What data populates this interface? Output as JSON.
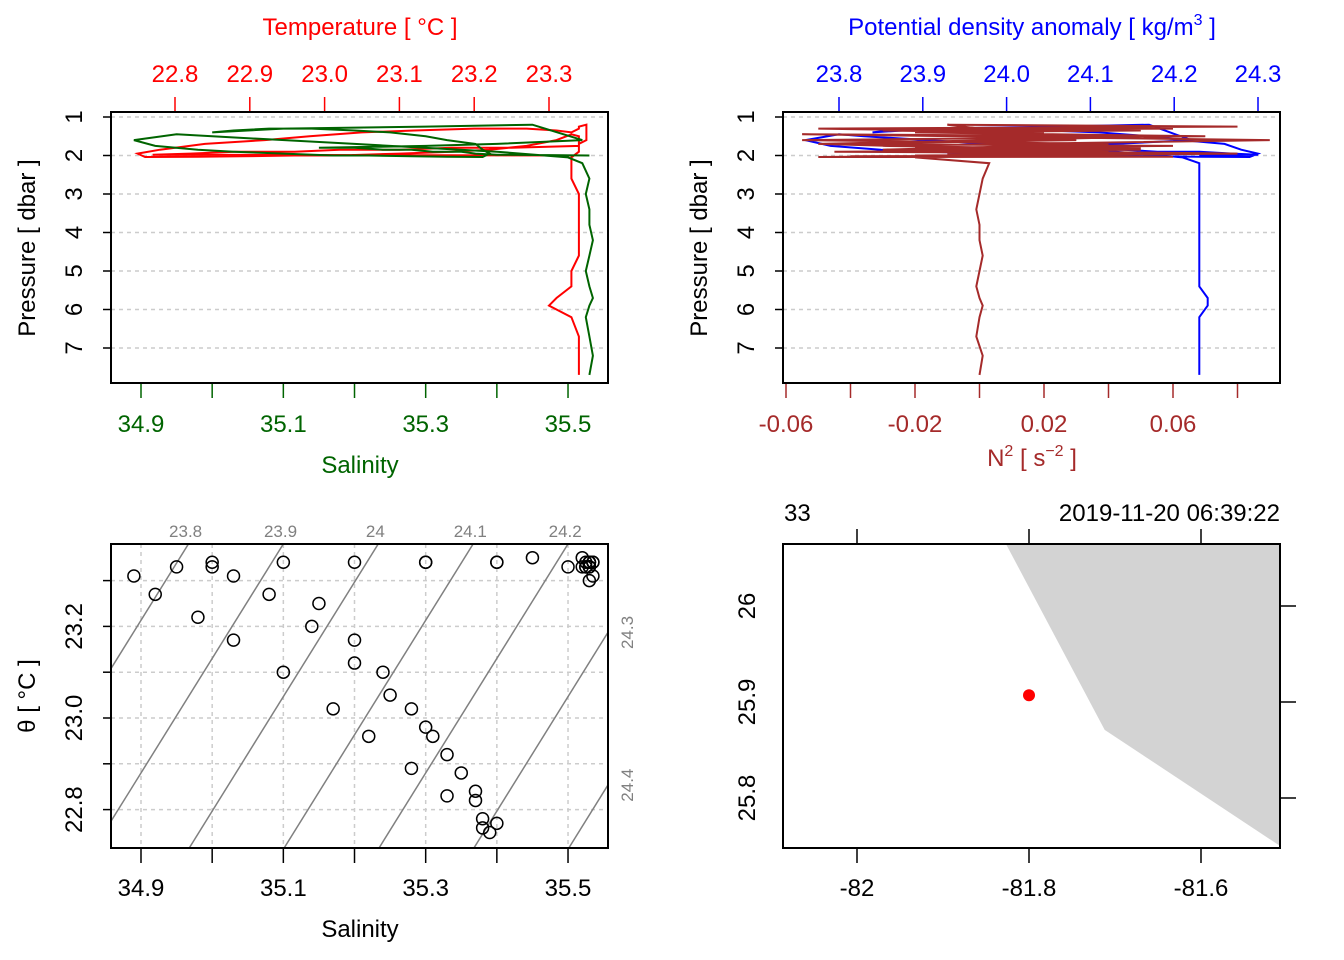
{
  "colors": {
    "temperature": "#ff0000",
    "salinity": "#006400",
    "density": "#0000ff",
    "n2": "#a52a2a",
    "land": "#d3d3d3",
    "station": "#ff0000",
    "isopycnal": "#808080",
    "grid": "#cccccc"
  },
  "panels": {
    "profile_ts": {
      "title": "Temperature [ °C ]",
      "xlabel": "Salinity",
      "ylabel": "Pressure [ dbar ]"
    },
    "profile_density": {
      "title_main": "Potential density anomaly [ kg/m",
      "title_sup": "3",
      "title_end": " ]",
      "xlabel_main": "N",
      "xlabel_sup1": "2",
      "xlabel_mid": " [ s",
      "xlabel_sup2": "−2",
      "xlabel_end": " ]",
      "ylabel": "Pressure [ dbar ]"
    },
    "ts_diagram": {
      "xlabel": "Salinity",
      "ylabel": "θ [ °C ]"
    },
    "map": {
      "station_label": "33",
      "time_label": "2019-11-20 06:39:22"
    }
  },
  "chart_data": [
    {
      "type": "line",
      "panel": "profile_ts",
      "yaxis": {
        "label": "Pressure [ dbar ]",
        "ticks": [
          1,
          2,
          3,
          4,
          5,
          6,
          7
        ],
        "range": [
          7.8,
          0.87
        ],
        "reversed": true
      },
      "xaxis_bottom": {
        "label": "Salinity",
        "ticks": [
          34.9,
          35.0,
          35.1,
          35.2,
          35.3,
          35.4,
          35.5
        ],
        "tick_labels": [
          "34.9",
          "",
          "35.1",
          "",
          "35.3",
          "",
          "35.5"
        ]
      },
      "xaxis_top": {
        "label": "Temperature [ °C ]",
        "ticks": [
          22.8,
          22.9,
          23.0,
          23.1,
          23.2,
          23.3
        ],
        "tick_labels": [
          "22.8",
          "22.9",
          "23.0",
          "23.1",
          "23.2",
          "23.3"
        ]
      },
      "grid": "horizontal-dashed",
      "series": [
        {
          "name": "Salinity",
          "axis": "bottom"
        },
        {
          "name": "Temperature",
          "axis": "top"
        }
      ]
    },
    {
      "type": "line",
      "panel": "profile_density",
      "yaxis": {
        "label": "Pressure [ dbar ]",
        "ticks": [
          1,
          2,
          3,
          4,
          5,
          6,
          7
        ],
        "reversed": true
      },
      "xaxis_top": {
        "ticks": [
          23.8,
          23.9,
          24.0,
          24.1,
          24.2,
          24.3
        ],
        "tick_labels": [
          "23.8",
          "23.9",
          "24.0",
          "24.1",
          "24.2",
          "24.3"
        ]
      },
      "xaxis_bottom": {
        "ticks": [
          -0.06,
          -0.04,
          -0.02,
          0,
          0.02,
          0.04,
          0.06,
          0.08
        ],
        "tick_labels": [
          "-0.06",
          "",
          "-0.02",
          "",
          "0.02",
          "",
          "0.06",
          ""
        ]
      },
      "grid": "horizontal-dashed",
      "series": [
        {
          "name": "Potential density anomaly",
          "axis": "top"
        },
        {
          "name": "N2",
          "axis": "bottom"
        }
      ]
    },
    {
      "type": "scatter",
      "panel": "ts_diagram",
      "xaxis": {
        "label": "Salinity",
        "ticks": [
          34.9,
          35.0,
          35.1,
          35.2,
          35.3,
          35.4,
          35.5
        ],
        "tick_labels": [
          "34.9",
          "",
          "35.1",
          "",
          "35.3",
          "",
          "35.5"
        ]
      },
      "yaxis": {
        "label": "θ [ °C ]",
        "ticks": [
          22.8,
          22.9,
          23.0,
          23.1,
          23.2,
          23.3
        ],
        "tick_labels": [
          "22.8",
          "",
          "23.0",
          "",
          "23.2",
          ""
        ]
      },
      "grid": "dashed",
      "isopycnals": [
        {
          "level": 23.7,
          "label": ""
        },
        {
          "level": 23.8,
          "label": "23.8",
          "label_side": "top"
        },
        {
          "level": 23.9,
          "label": "23.9",
          "label_side": "top"
        },
        {
          "level": 24.0,
          "label": "24",
          "label_side": "top"
        },
        {
          "level": 24.1,
          "label": "24.1",
          "label_side": "top"
        },
        {
          "level": 24.2,
          "label": "24.2",
          "label_side": "top"
        },
        {
          "level": 24.3,
          "label": "24.3",
          "label_side": "right"
        },
        {
          "level": 24.4,
          "label": "24.4",
          "label_side": "right"
        },
        {
          "level": 24.5,
          "label": ""
        }
      ]
    },
    {
      "type": "map",
      "panel": "map",
      "xaxis": {
        "ticks": [
          -82,
          -81.8,
          -81.6
        ],
        "tick_labels": [
          "-82",
          "-81.8",
          "-81.6"
        ]
      },
      "yaxis": {
        "ticks": [
          25.8,
          25.9,
          26
        ],
        "tick_labels": [
          "25.8",
          "25.9",
          "26"
        ]
      },
      "land": [
        [
          -81.83,
          26.07
        ],
        [
          -81.712,
          25.871
        ],
        [
          -81.508,
          25.75
        ],
        [
          -81.508,
          26.07
        ]
      ],
      "station": {
        "lon": -81.8,
        "lat": 25.907
      }
    }
  ],
  "profile": {
    "pressure": [
      7.7,
      7.2,
      6.7,
      6.2,
      5.9,
      5.7,
      5.4,
      5.0,
      4.6,
      4.2,
      3.8,
      3.4,
      3.0,
      2.6,
      2.2,
      2.05,
      1.9,
      1.7,
      1.5,
      1.45,
      1.6,
      1.75,
      1.85,
      1.9,
      1.95,
      2.0,
      2.0,
      2.02,
      2.03,
      2.04,
      1.95,
      1.85,
      1.7,
      1.6,
      1.5,
      1.4,
      1.35,
      1.3,
      1.3,
      1.35,
      1.4,
      1.3,
      1.25,
      1.2,
      1.6,
      1.7,
      1.75,
      1.8,
      1.8,
      1.85,
      1.85,
      1.9,
      1.9,
      1.95,
      1.98,
      2.0
    ],
    "salinity": [
      35.53,
      35.535,
      35.53,
      35.525,
      35.53,
      35.535,
      35.53,
      35.525,
      35.53,
      35.535,
      35.53,
      35.53,
      35.525,
      35.53,
      35.52,
      35.5,
      35.4,
      35.2,
      35.0,
      34.95,
      34.89,
      34.92,
      34.98,
      35.03,
      35.1,
      35.17,
      35.22,
      35.28,
      35.33,
      35.38,
      35.39,
      35.38,
      35.37,
      35.33,
      35.3,
      35.25,
      35.2,
      35.14,
      35.08,
      35.03,
      35.0,
      35.1,
      35.3,
      35.45,
      35.52,
      35.4,
      35.3,
      35.15,
      35.2,
      35.24,
      35.28,
      35.31,
      35.35,
      35.37,
      35.4,
      35.53
    ],
    "temperature": [
      23.34,
      23.34,
      23.34,
      23.33,
      23.3,
      23.31,
      23.33,
      23.33,
      23.34,
      23.34,
      23.34,
      23.34,
      23.34,
      23.33,
      23.33,
      23.33,
      23.34,
      23.34,
      23.34,
      23.33,
      23.31,
      23.27,
      23.22,
      23.17,
      23.1,
      23.02,
      22.96,
      22.89,
      22.83,
      22.76,
      22.75,
      22.78,
      22.84,
      22.92,
      22.98,
      23.05,
      23.12,
      23.2,
      23.27,
      23.31,
      23.33,
      23.34,
      23.34,
      23.35,
      23.35,
      23.34,
      23.34,
      23.25,
      23.17,
      23.1,
      23.02,
      22.96,
      22.88,
      22.82,
      22.77,
      23.33
    ],
    "sigma_theta": [
      24.23,
      24.23,
      24.23,
      24.23,
      24.24,
      24.24,
      24.23,
      24.23,
      24.23,
      24.23,
      24.23,
      24.23,
      24.23,
      24.23,
      24.23,
      24.21,
      24.13,
      23.98,
      23.83,
      23.8,
      23.76,
      23.79,
      23.85,
      23.91,
      23.98,
      24.06,
      24.11,
      24.18,
      24.23,
      24.29,
      24.3,
      24.28,
      24.26,
      24.21,
      24.17,
      24.11,
      24.05,
      23.98,
      23.91,
      23.86,
      23.84,
      23.91,
      24.06,
      24.17,
      24.22,
      24.13,
      24.06,
      23.97,
      24.03,
      24.08,
      24.14,
      24.18,
      24.23,
      24.27,
      24.3,
      24.23
    ],
    "n2": [
      0,
      0.001,
      -0.001,
      0,
      0.001,
      0,
      -0.001,
      0,
      0.001,
      0,
      0,
      -0.001,
      0,
      0.001,
      0.003,
      -0.02,
      0.04,
      -0.05,
      0.06,
      -0.055,
      0.09,
      -0.03,
      0.05,
      -0.045,
      0.07,
      -0.02,
      0.03,
      -0.04,
      0.06,
      -0.05,
      0.08,
      -0.03,
      0.04,
      -0.055,
      0.07,
      -0.02,
      0.05,
      -0.04,
      0.06,
      -0.03,
      0.02,
      -0.05,
      0.08,
      -0.01,
      0.03,
      -0.045,
      0.06,
      -0.02,
      0.05,
      -0.03,
      0.04,
      -0.02,
      0.03,
      -0.01,
      0.02,
      0
    ]
  }
}
